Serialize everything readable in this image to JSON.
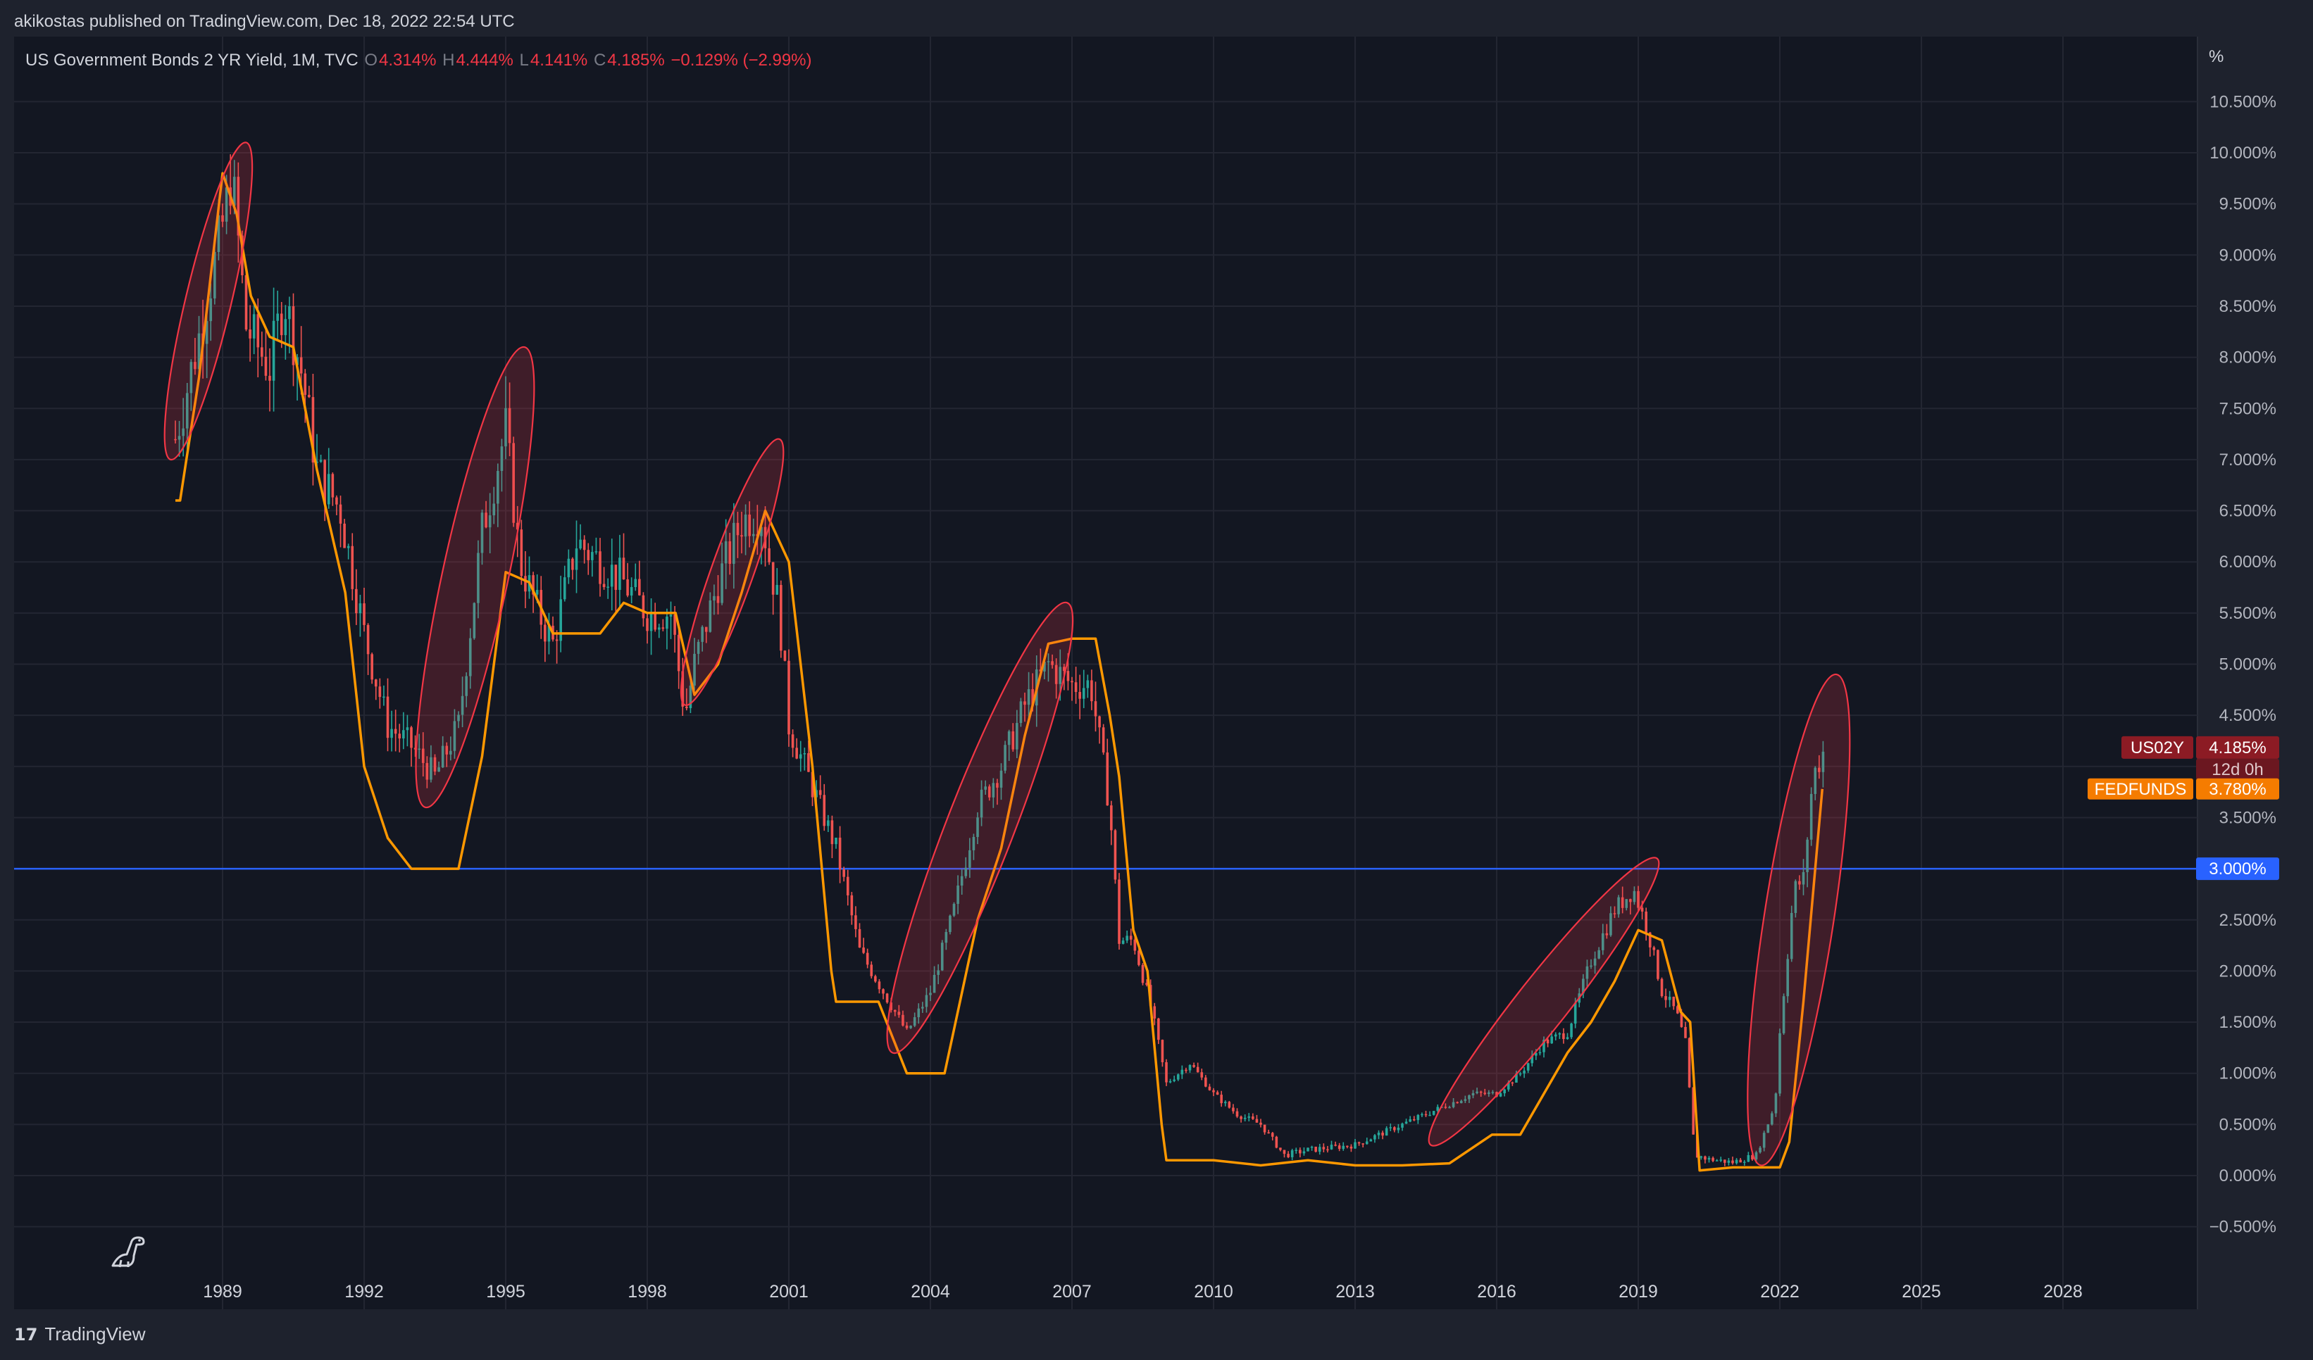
{
  "header": {
    "published": "akikostas published on TradingView.com, Dec 18, 2022 22:54 UTC"
  },
  "legend": {
    "symbol": "US Government Bonds 2 YR Yield, 1M, TVC",
    "o_label": "O",
    "o_value": "4.314%",
    "h_label": "H",
    "h_value": "4.444%",
    "l_label": "L",
    "l_value": "4.141%",
    "c_label": "C",
    "c_value": "4.185%",
    "change": "−0.129% (−2.99%)"
  },
  "footer": {
    "brand": "TradingView",
    "logo_glyph": "17"
  },
  "icons": {
    "logo": "tradingview-logo-icon",
    "dino": "dinosaur-icon"
  },
  "colors": {
    "background": "#131722",
    "candle_up": "#26a69a",
    "candle_down": "#ef5350",
    "fedfunds_line": "#ff9800",
    "level_line": "#2962ff",
    "ellipse_stroke": "#f23645",
    "ellipse_fill": "rgba(242,54,69,0.20)"
  },
  "chart_data": {
    "type": "line",
    "title": "US Government Bonds 2 YR Yield, 1M, TVC",
    "y_unit": "%",
    "ylim": [
      -0.75,
      11.0
    ],
    "y_ticks": [
      "10.500%",
      "10.000%",
      "9.500%",
      "9.000%",
      "8.500%",
      "8.000%",
      "7.500%",
      "7.000%",
      "6.500%",
      "6.000%",
      "5.500%",
      "5.000%",
      "4.500%",
      "4.000%",
      "3.500%",
      "3.000%",
      "2.500%",
      "2.000%",
      "1.500%",
      "1.000%",
      "0.500%",
      "0.000%",
      "−0.500%"
    ],
    "y_tick_values": [
      10.5,
      10,
      9.5,
      9,
      8.5,
      8,
      7.5,
      7,
      6.5,
      6,
      5.5,
      5,
      4.5,
      4,
      3.5,
      3,
      2.5,
      2,
      1.5,
      1,
      0.5,
      0,
      -0.5
    ],
    "x_ticks": [
      "1989",
      "1992",
      "1995",
      "1998",
      "2001",
      "2004",
      "2007",
      "2010",
      "2013",
      "2016",
      "2019",
      "2022",
      "2025",
      "2028"
    ],
    "x_tick_values": [
      1989,
      1992,
      1995,
      1998,
      2001,
      2004,
      2007,
      2010,
      2013,
      2016,
      2019,
      2022,
      2025,
      2028
    ],
    "xlim": [
      1985.6,
      2030.3
    ],
    "grid": true,
    "series": [
      {
        "name": "US02Y",
        "style": "candles",
        "last_value_label": "4.185%",
        "countdown": "12d 0h",
        "x": [
          1988.0,
          1988.5,
          1989.0,
          1989.2,
          1989.5,
          1990.0,
          1990.3,
          1990.7,
          1991.0,
          1991.5,
          1992.0,
          1992.5,
          1993.0,
          1993.5,
          1993.8,
          1994.0,
          1994.5,
          1995.0,
          1995.3,
          1995.7,
          1996.0,
          1996.5,
          1997.0,
          1997.5,
          1998.0,
          1998.5,
          1998.8,
          1999.0,
          1999.5,
          2000.0,
          2000.4,
          2000.8,
          2001.0,
          2001.5,
          2002.0,
          2002.5,
          2003.0,
          2003.5,
          2004.0,
          2004.5,
          2005.0,
          2005.5,
          2006.0,
          2006.5,
          2007.0,
          2007.4,
          2007.8,
          2008.0,
          2008.3,
          2008.7,
          2009.0,
          2009.5,
          2010.0,
          2010.5,
          2011.0,
          2011.5,
          2012.0,
          2013.0,
          2014.0,
          2015.0,
          2015.5,
          2016.0,
          2016.5,
          2017.0,
          2017.5,
          2018.0,
          2018.5,
          2018.9,
          2019.2,
          2019.5,
          2019.8,
          2020.0,
          2020.2,
          2020.5,
          2021.0,
          2021.5,
          2021.9,
          2022.0,
          2022.3,
          2022.5,
          2022.7,
          2022.96
        ],
        "values": [
          7.2,
          8.2,
          9.3,
          9.8,
          8.3,
          7.9,
          8.6,
          7.8,
          6.9,
          6.5,
          5.3,
          4.4,
          4.2,
          3.9,
          4.2,
          4.4,
          6.3,
          7.3,
          6.0,
          5.5,
          5.2,
          6.2,
          6.0,
          5.8,
          5.5,
          5.5,
          4.5,
          5.0,
          5.8,
          6.4,
          6.5,
          5.5,
          4.4,
          3.8,
          3.2,
          2.2,
          1.8,
          1.4,
          1.8,
          2.6,
          3.6,
          4.0,
          4.6,
          5.0,
          4.8,
          4.8,
          3.6,
          2.3,
          2.3,
          1.6,
          0.9,
          1.1,
          0.8,
          0.6,
          0.5,
          0.2,
          0.25,
          0.3,
          0.5,
          0.7,
          0.8,
          0.8,
          1.0,
          1.3,
          1.4,
          2.1,
          2.6,
          2.8,
          2.4,
          1.8,
          1.6,
          1.3,
          0.2,
          0.16,
          0.13,
          0.2,
          0.7,
          1.4,
          2.8,
          2.9,
          3.9,
          4.185
        ]
      },
      {
        "name": "FEDFUNDS",
        "style": "line",
        "last_value_label": "3.780%",
        "x": [
          1988.0,
          1988.1,
          1988.5,
          1989.0,
          1989.3,
          1989.6,
          1990.0,
          1990.5,
          1991.0,
          1991.6,
          1992.0,
          1992.5,
          1993.0,
          1993.5,
          1994.0,
          1994.5,
          1995.0,
          1995.5,
          1996.0,
          1996.5,
          1997.0,
          1997.5,
          1998.0,
          1998.6,
          1998.9,
          1999.0,
          1999.5,
          2000.0,
          2000.5,
          2001.0,
          2001.5,
          2001.9,
          2002.0,
          2002.9,
          2003.5,
          2004.3,
          2005.0,
          2005.5,
          2006.0,
          2006.5,
          2007.0,
          2007.5,
          2007.8,
          2008.0,
          2008.3,
          2008.6,
          2008.9,
          2009.0,
          2010.0,
          2011.0,
          2012.0,
          2013.0,
          2014.0,
          2015.0,
          2015.9,
          2016.5,
          2017.0,
          2017.5,
          2018.0,
          2018.5,
          2019.0,
          2019.5,
          2019.9,
          2020.1,
          2020.3,
          2021.0,
          2022.0,
          2022.2,
          2022.5,
          2022.9
        ],
        "values": [
          6.6,
          6.6,
          7.8,
          9.8,
          9.4,
          8.6,
          8.2,
          8.1,
          6.9,
          5.7,
          4.0,
          3.3,
          3.0,
          3.0,
          3.0,
          4.1,
          5.9,
          5.8,
          5.3,
          5.3,
          5.3,
          5.6,
          5.5,
          5.5,
          4.9,
          4.7,
          5.0,
          5.7,
          6.5,
          6.0,
          4.0,
          2.0,
          1.7,
          1.7,
          1.0,
          1.0,
          2.5,
          3.2,
          4.3,
          5.2,
          5.25,
          5.25,
          4.5,
          3.9,
          2.4,
          2.0,
          0.5,
          0.15,
          0.15,
          0.1,
          0.15,
          0.1,
          0.1,
          0.12,
          0.4,
          0.4,
          0.8,
          1.2,
          1.5,
          1.9,
          2.4,
          2.3,
          1.6,
          1.5,
          0.05,
          0.08,
          0.08,
          0.33,
          1.7,
          3.78
        ]
      }
    ],
    "horizontal_line": {
      "value": 3.0,
      "label": "3.000%"
    },
    "annotations": [
      {
        "type": "ellipse",
        "x": [
          1987.9,
          1989.5
        ],
        "y": [
          7.0,
          10.1
        ]
      },
      {
        "type": "ellipse",
        "x": [
          1993.3,
          1995.4
        ],
        "y": [
          3.6,
          8.1
        ]
      },
      {
        "type": "ellipse",
        "x": [
          1998.8,
          2000.8
        ],
        "y": [
          4.6,
          7.2
        ]
      },
      {
        "type": "ellipse",
        "x": [
          2003.2,
          2006.9
        ],
        "y": [
          1.2,
          5.6
        ]
      },
      {
        "type": "ellipse",
        "x": [
          2014.6,
          2019.4
        ],
        "y": [
          0.3,
          3.1
        ]
      },
      {
        "type": "ellipse",
        "x": [
          2021.6,
          2023.2
        ],
        "y": [
          0.1,
          4.9
        ]
      }
    ]
  }
}
